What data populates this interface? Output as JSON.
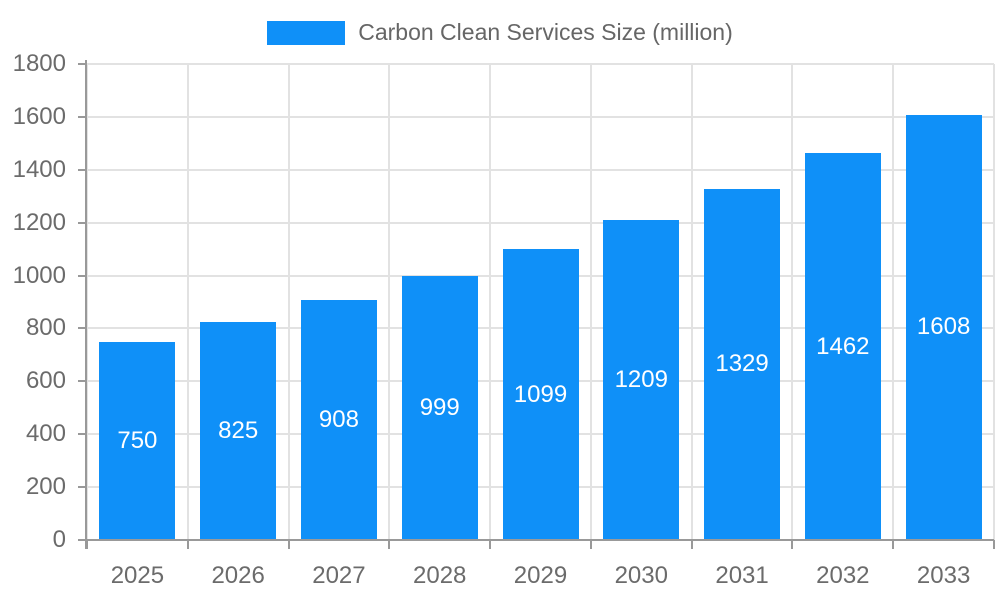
{
  "chart_data": {
    "type": "bar",
    "title": "Carbon Clean Services Size (million)",
    "legend_entries": [
      "Carbon Clean Services Size (million)"
    ],
    "legend_position": "top",
    "categories": [
      "2025",
      "2026",
      "2027",
      "2028",
      "2029",
      "2030",
      "2031",
      "2032",
      "2033"
    ],
    "values": [
      750,
      825,
      908,
      999,
      1099,
      1209,
      1329,
      1462,
      1608
    ],
    "value_labels_shown_inside_bars": true,
    "xlabel": "",
    "ylabel": "",
    "ylim": [
      0,
      1800
    ],
    "yticks": [
      0,
      200,
      400,
      600,
      800,
      1000,
      1200,
      1400,
      1600,
      1800
    ],
    "grid": true,
    "colors": {
      "bar": "#0f90f8",
      "grid": "#e2e2e2",
      "axis": "#999999",
      "tick_text": "#6b6b6b",
      "bar_label_text": "#ffffff",
      "legend_text": "#666666",
      "background": "#ffffff"
    }
  }
}
